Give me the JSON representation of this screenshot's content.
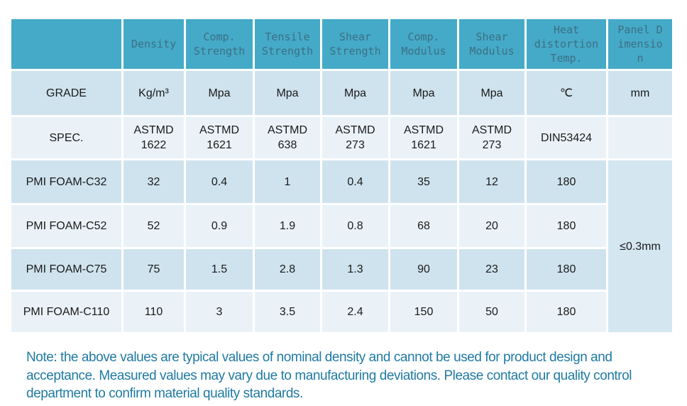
{
  "table": {
    "header": {
      "corner": "",
      "columns": [
        "Density",
        "Comp. Strength",
        "Tensile Strength",
        "Shear Strength",
        "Comp. Modulus",
        "Shear Modulus",
        "Heat distortion Temp.",
        "Panel Dimension"
      ]
    },
    "rows": [
      {
        "label": "GRADE",
        "cells": [
          "Kg/m³",
          "Mpa",
          "Mpa",
          "Mpa",
          "Mpa",
          "Mpa",
          "℃",
          "mm"
        ]
      },
      {
        "label": "SPEC.",
        "cells": [
          "ASTMD 1622",
          "ASTMD 1621",
          "ASTMD 638",
          "ASTMD 273",
          "ASTMD 1621",
          "ASTMD 273",
          "DIN53424",
          ""
        ]
      },
      {
        "label": "PMI FOAM-C32",
        "cells": [
          "32",
          "0.4",
          "1",
          "0.4",
          "35",
          "12",
          "180"
        ]
      },
      {
        "label": "PMI FOAM-C52",
        "cells": [
          "52",
          "0.9",
          "1.9",
          "0.8",
          "68",
          "20",
          "180"
        ]
      },
      {
        "label": "PMI FOAM-C75",
        "cells": [
          "75",
          "1.5",
          "2.8",
          "1.3",
          "90",
          "23",
          "180"
        ]
      },
      {
        "label": "PMI FOAM-C110",
        "cells": [
          "110",
          "3",
          "3.5",
          "2.4",
          "150",
          "50",
          "180"
        ]
      }
    ],
    "merged_panel_dimension": "≤0.3mm"
  },
  "note": "Note: the above values are typical values of nominal density and cannot be used for product design and acceptance. Measured values may vary due to manufacturing deviations. Please contact our quality control department to confirm material quality standards.",
  "colors": {
    "header_bg": "#45aac8",
    "header_text": "#3c6f83",
    "row_dark": "#cfe3ee",
    "row_light": "#eaf2f7",
    "merged_cell_bg": "#d4e6f0",
    "note_text": "#1f7aa3"
  }
}
